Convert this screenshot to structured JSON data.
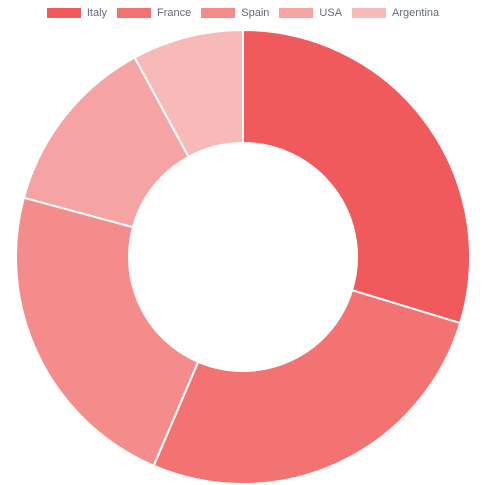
{
  "chart_data": {
    "type": "doughnut",
    "categories": [
      "Italy",
      "France",
      "Spain",
      "USA",
      "Argentina"
    ],
    "values": [
      30,
      27,
      23,
      13,
      8
    ],
    "colors": [
      "#f05a5c",
      "#f37272",
      "#f58c8c",
      "#f6a3a3",
      "#f8b9b9"
    ],
    "legend": "top",
    "border_color": "#ffffff"
  }
}
